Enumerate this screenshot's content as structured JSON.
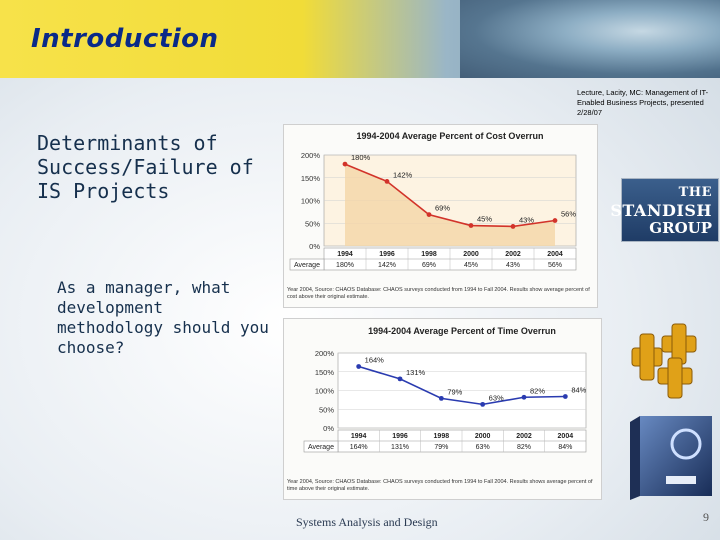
{
  "slide": {
    "title": "Introduction",
    "source_note": "Lecture, Lacity, MC: Management of IT-Enabled Business Projects, presented 2/28/07",
    "heading": "Determinants of Success/Failure of IS Projects",
    "question": "As a manager, what development methodology should you choose?",
    "footer": "Systems Analysis and Design",
    "slide_number": "9",
    "logo_text": [
      "THE",
      "STANDISH",
      "GROUP"
    ]
  },
  "chart_data": [
    {
      "type": "line",
      "title": "1994-2004 Average Percent of Cost Overrun",
      "categories": [
        "1994",
        "1996",
        "1998",
        "2000",
        "2002",
        "2004"
      ],
      "row_label": "Average",
      "series": [
        {
          "values": [
            180,
            142,
            69,
            45,
            43,
            56
          ]
        }
      ],
      "data_labels": [
        "180%",
        "142%",
        "69%",
        "45%",
        "43%",
        "56%"
      ],
      "yticks": [
        "200%",
        "150%",
        "100%",
        "50%",
        "0%"
      ],
      "ylim": [
        0,
        200
      ],
      "line_color": "#d2332a",
      "fill_color": "#f4d6a8",
      "caption": "Year 2004, Source: CHAOS Database: CHAOS surveys conducted from 1994 to Fall 2004. Results show average percent of cost above their original estimate."
    },
    {
      "type": "line",
      "title": "1994-2004 Average Percent of Time Overrun",
      "categories": [
        "1994",
        "1996",
        "1998",
        "2000",
        "2002",
        "2004"
      ],
      "row_label": "Average",
      "series": [
        {
          "values": [
            164,
            131,
            79,
            63,
            82,
            84
          ]
        }
      ],
      "data_labels": [
        "164%",
        "131%",
        "79%",
        "63%",
        "82%",
        "84%"
      ],
      "yticks": [
        "200%",
        "150%",
        "100%",
        "50%",
        "0%"
      ],
      "ylim": [
        0,
        200
      ],
      "line_color": "#2a3bb0",
      "fill_color": "#ffffff",
      "caption": "Year 2004, Source: CHAOS Database: CHAOS surveys conducted from 1994 to Fall 2004. Results shows average percent of time above their original estimate."
    }
  ]
}
